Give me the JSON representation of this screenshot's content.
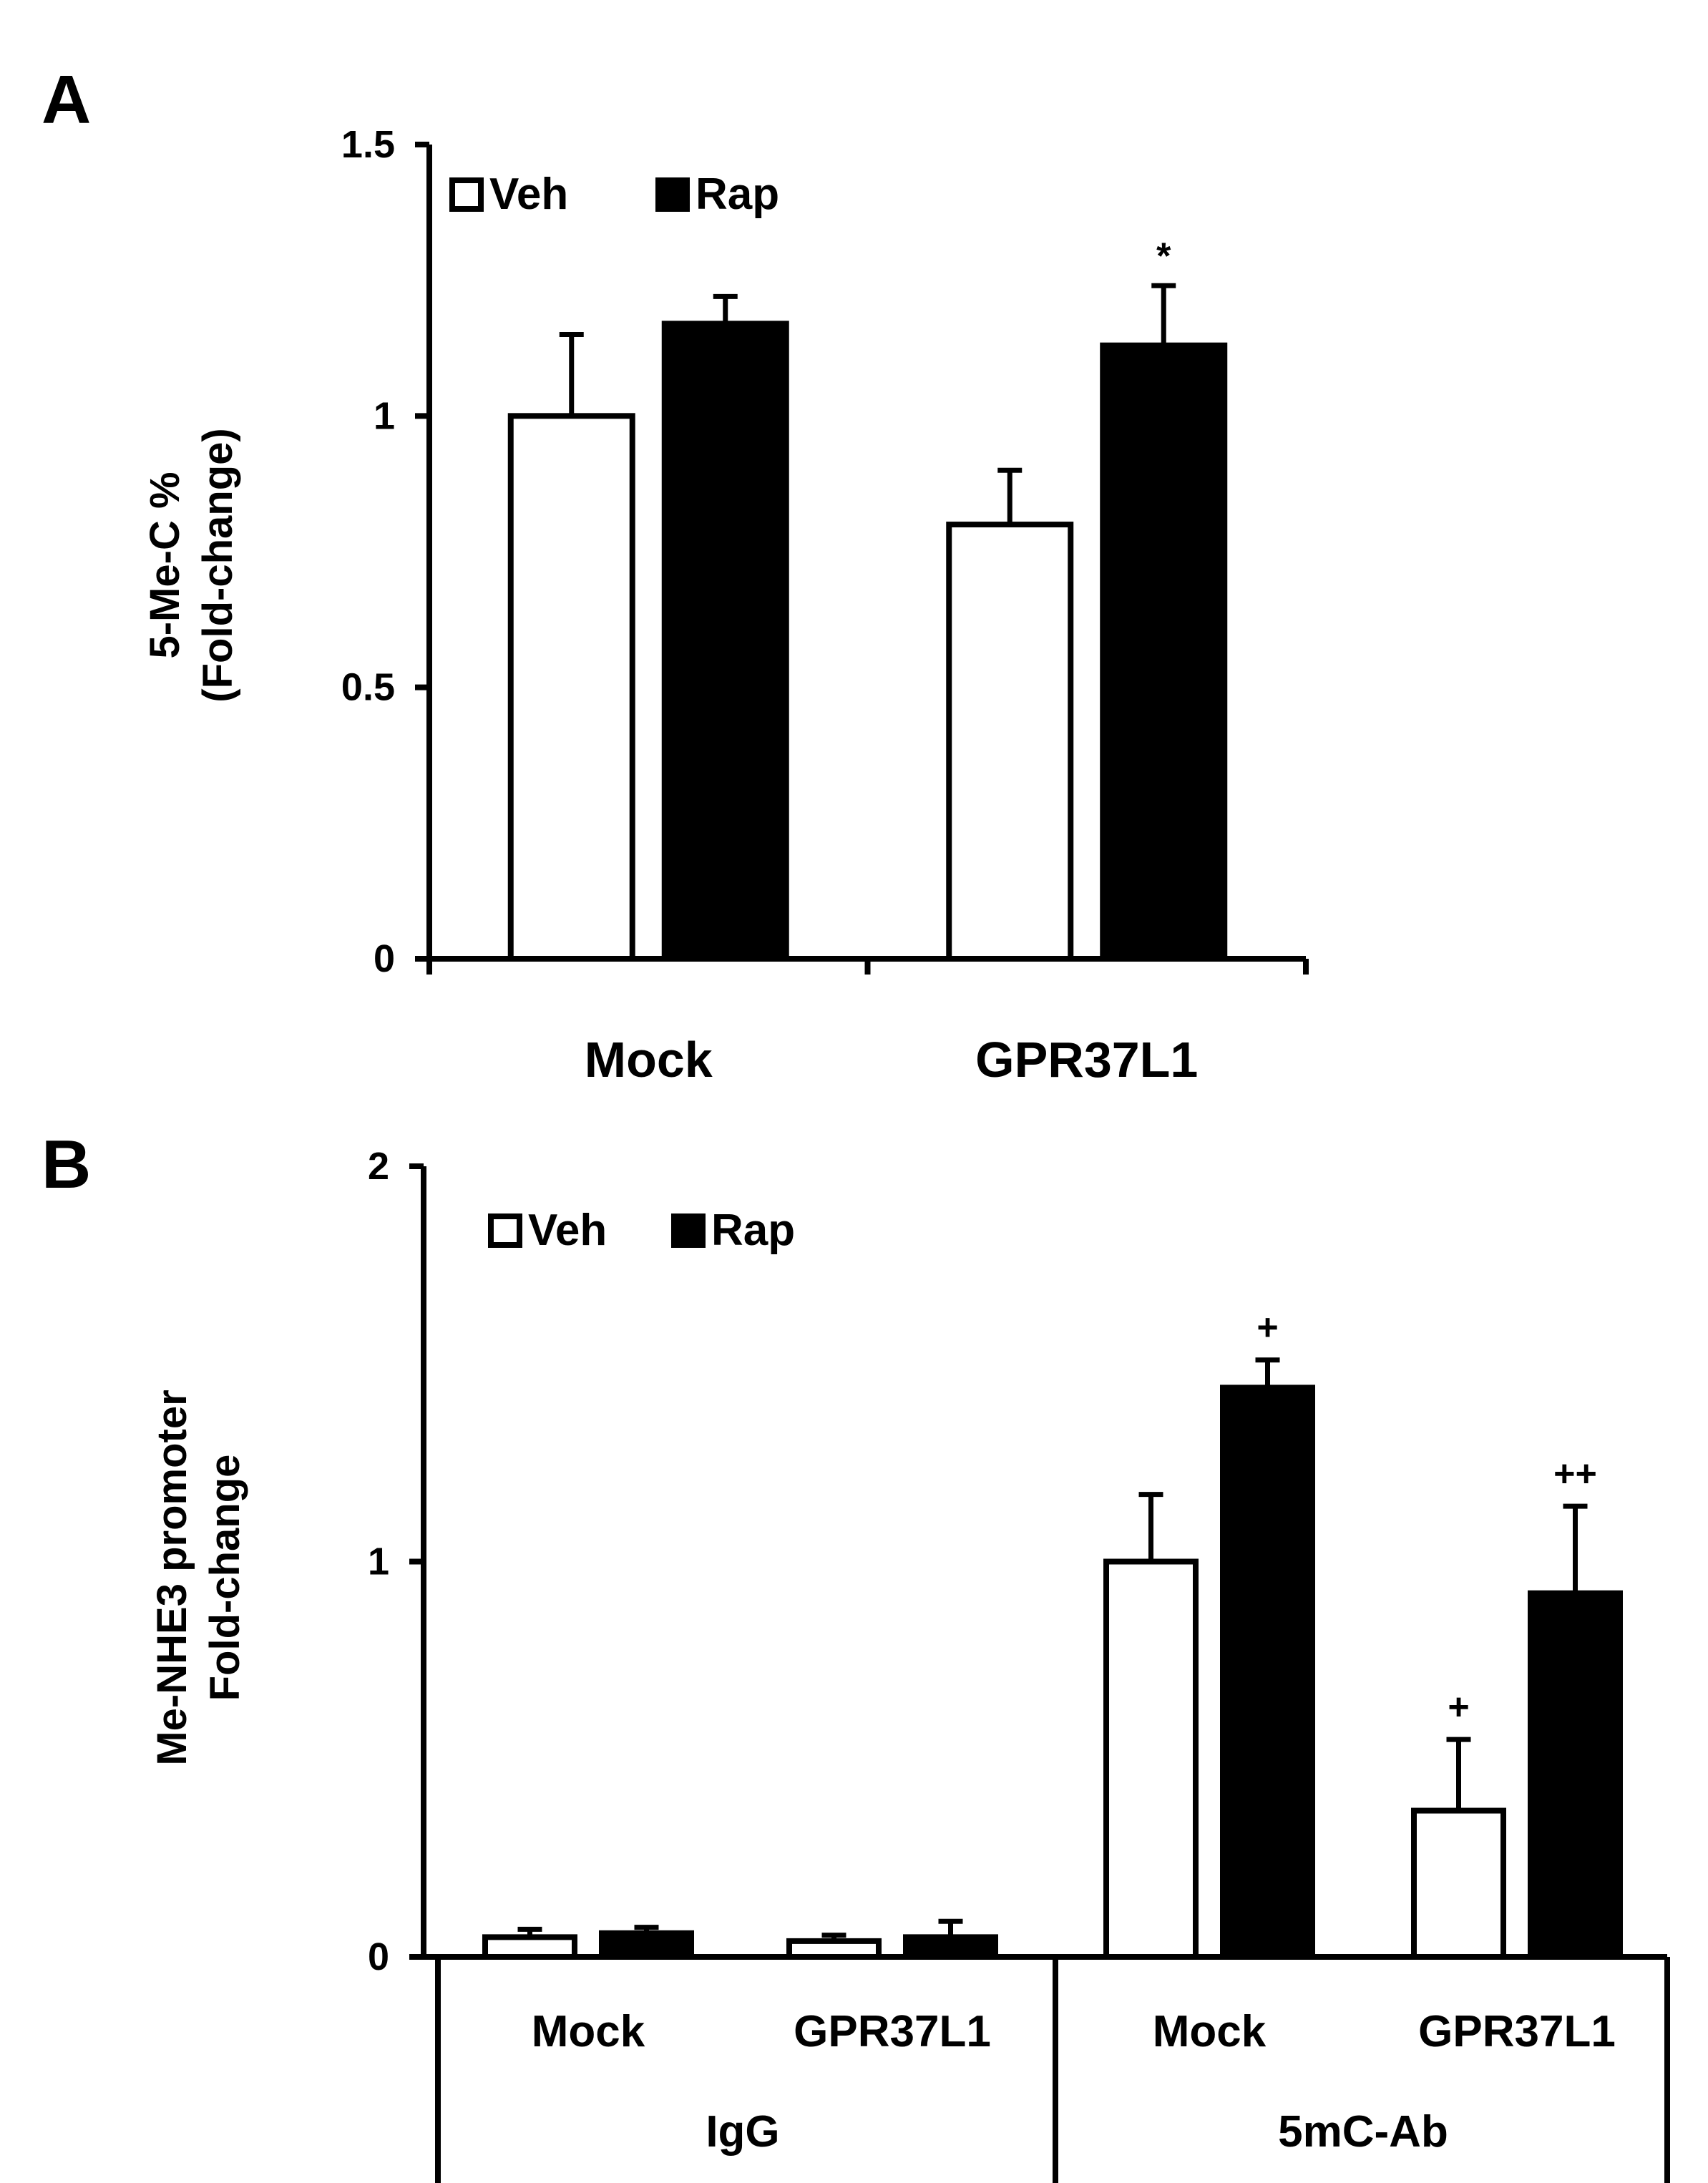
{
  "chart_data": [
    {
      "panel": "A",
      "type": "bar",
      "ylabel_lines": [
        "5-Me-C %",
        "(Fold-change)"
      ],
      "ylim": [
        0,
        1.5
      ],
      "yticks": [
        "0",
        "0.5",
        "1",
        "1.5"
      ],
      "categories": [
        "Mock",
        "GPR37L1"
      ],
      "legend": [
        "Veh",
        "Rap"
      ],
      "legend_position": "top-left",
      "grid": false,
      "series": [
        {
          "name": "Veh",
          "color": "#ffffff",
          "values": [
            1.0,
            0.8
          ],
          "errors": [
            0.15,
            0.1
          ]
        },
        {
          "name": "Rap",
          "color": "#000000",
          "values": [
            1.17,
            1.13
          ],
          "errors": [
            0.05,
            0.11
          ]
        }
      ],
      "annotations": [
        {
          "category": "GPR37L1",
          "series": "Rap",
          "text": "*"
        }
      ]
    },
    {
      "panel": "B",
      "type": "bar",
      "ylabel_lines": [
        "Me-NHE3 promoter",
        "Fold-change"
      ],
      "ylim": [
        0,
        2
      ],
      "yticks": [
        "0",
        "1",
        "2"
      ],
      "groups": [
        "IgG",
        "5mC-Ab"
      ],
      "categories": [
        "Mock",
        "GPR37L1",
        "Mock",
        "GPR37L1"
      ],
      "legend": [
        "Veh",
        "Rap"
      ],
      "legend_position": "top-left",
      "grid": false,
      "series": [
        {
          "name": "Veh",
          "color": "#ffffff",
          "values": [
            0.05,
            0.04,
            1.0,
            0.37
          ],
          "errors": [
            0.02,
            0.015,
            0.17,
            0.18
          ]
        },
        {
          "name": "Rap",
          "color": "#000000",
          "values": [
            0.06,
            0.05,
            1.44,
            0.92
          ],
          "errors": [
            0.015,
            0.04,
            0.07,
            0.22
          ]
        }
      ],
      "annotations": [
        {
          "index": 2,
          "series": "Rap",
          "text": "+"
        },
        {
          "index": 3,
          "series": "Veh",
          "text": "+"
        },
        {
          "index": 3,
          "series": "Rap",
          "text": "++"
        }
      ]
    }
  ]
}
